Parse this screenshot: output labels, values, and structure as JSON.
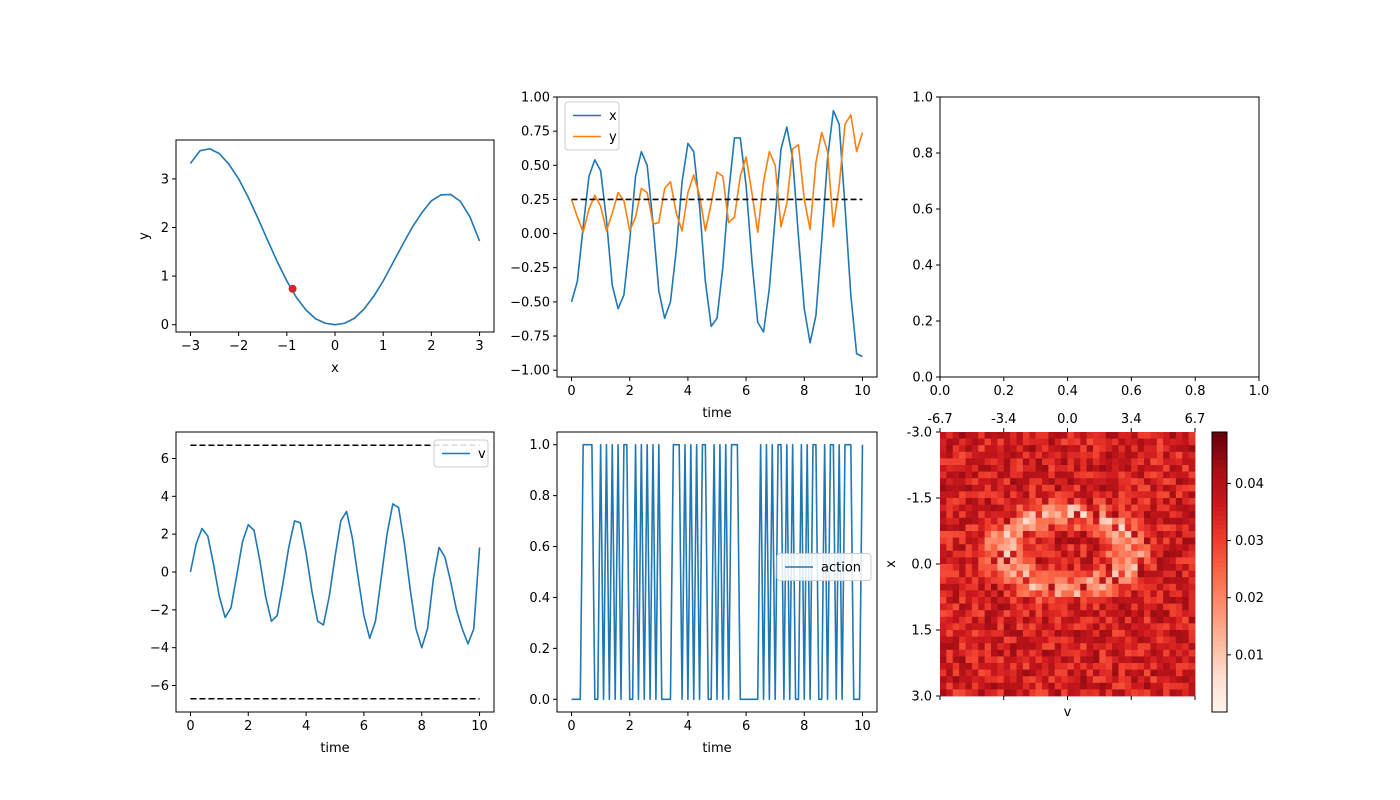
{
  "figure": {
    "background": "#ffffff"
  },
  "colors": {
    "blue": "#1f77b4",
    "orange": "#ff7f0e",
    "red_point": "#d62728",
    "dashed": "#000000"
  },
  "chart_data": [
    {
      "id": "p1",
      "type": "line",
      "xlabel": "x",
      "ylabel": "y",
      "xlim": [
        -3.3,
        3.3
      ],
      "ylim": [
        -0.15,
        3.8
      ],
      "xticks": [
        -3,
        -2,
        -1,
        0,
        1,
        2,
        3
      ],
      "xtick_labels": [
        "−3",
        "−2",
        "−1",
        "0",
        "1",
        "2",
        "3"
      ],
      "yticks": [
        0,
        1,
        2,
        3
      ],
      "ytick_labels": [
        "0",
        "1",
        "2",
        "3"
      ],
      "series": [
        {
          "color": "#1f77b4",
          "x": [
            -3.0,
            -2.8,
            -2.6,
            -2.4,
            -2.2,
            -2.0,
            -1.8,
            -1.6,
            -1.4,
            -1.2,
            -1.0,
            -0.8,
            -0.6,
            -0.4,
            -0.2,
            0.0,
            0.2,
            0.4,
            0.6,
            0.8,
            1.0,
            1.2,
            1.4,
            1.6,
            1.8,
            2.0,
            2.2,
            2.4,
            2.6,
            2.8,
            3.0
          ],
          "y": [
            3.32,
            3.58,
            3.62,
            3.52,
            3.3,
            3.0,
            2.62,
            2.19,
            1.74,
            1.3,
            0.9,
            0.56,
            0.3,
            0.12,
            0.03,
            0.0,
            0.03,
            0.13,
            0.32,
            0.58,
            0.9,
            1.27,
            1.64,
            2.0,
            2.3,
            2.55,
            2.67,
            2.68,
            2.54,
            2.22,
            1.72
          ]
        }
      ],
      "points": [
        {
          "x": -0.88,
          "y": 0.74,
          "color": "#d62728"
        }
      ]
    },
    {
      "id": "p2",
      "type": "line",
      "xlabel": "time",
      "ylabel": "",
      "xlim": [
        -0.5,
        10.5
      ],
      "ylim": [
        -1.05,
        1.0
      ],
      "xticks": [
        0,
        2,
        4,
        6,
        8,
        10
      ],
      "xtick_labels": [
        "0",
        "2",
        "4",
        "6",
        "8",
        "10"
      ],
      "yticks": [
        -1.0,
        -0.75,
        -0.5,
        -0.25,
        0.0,
        0.25,
        0.5,
        0.75,
        1.0
      ],
      "ytick_labels": [
        "−1.00",
        "−0.75",
        "−0.50",
        "−0.25",
        "0.00",
        "0.25",
        "0.50",
        "0.75",
        "1.00"
      ],
      "legend": {
        "position": "upper left",
        "entries": [
          "x",
          "y"
        ]
      },
      "series": [
        {
          "name": "x",
          "color": "#1f77b4",
          "x": [
            0.0,
            0.2,
            0.4,
            0.6,
            0.8,
            1.0,
            1.2,
            1.4,
            1.6,
            1.8,
            2.0,
            2.2,
            2.4,
            2.6,
            2.8,
            3.0,
            3.2,
            3.4,
            3.6,
            3.8,
            4.0,
            4.2,
            4.4,
            4.6,
            4.8,
            5.0,
            5.2,
            5.4,
            5.6,
            5.8,
            6.0,
            6.2,
            6.4,
            6.6,
            6.8,
            7.0,
            7.2,
            7.4,
            7.6,
            7.8,
            8.0,
            8.2,
            8.4,
            8.6,
            8.8,
            9.0,
            9.2,
            9.4,
            9.6,
            9.8,
            10.0
          ],
          "y": [
            -0.5,
            -0.35,
            0.05,
            0.42,
            0.54,
            0.46,
            0.1,
            -0.38,
            -0.55,
            -0.45,
            -0.05,
            0.42,
            0.6,
            0.5,
            0.08,
            -0.42,
            -0.62,
            -0.5,
            -0.12,
            0.38,
            0.66,
            0.6,
            0.2,
            -0.35,
            -0.68,
            -0.62,
            -0.25,
            0.3,
            0.7,
            0.7,
            0.35,
            -0.2,
            -0.65,
            -0.72,
            -0.4,
            0.12,
            0.62,
            0.78,
            0.55,
            -0.02,
            -0.55,
            -0.8,
            -0.6,
            -0.05,
            0.55,
            0.9,
            0.8,
            0.2,
            -0.45,
            -0.88,
            -0.9
          ]
        },
        {
          "name": "y",
          "color": "#ff7f0e",
          "x": [
            0.0,
            0.2,
            0.4,
            0.6,
            0.8,
            1.0,
            1.2,
            1.4,
            1.6,
            1.8,
            2.0,
            2.2,
            2.4,
            2.6,
            2.8,
            3.0,
            3.2,
            3.4,
            3.6,
            3.8,
            4.0,
            4.2,
            4.4,
            4.6,
            4.8,
            5.0,
            5.2,
            5.4,
            5.6,
            5.8,
            6.0,
            6.2,
            6.4,
            6.6,
            6.8,
            7.0,
            7.2,
            7.4,
            7.6,
            7.8,
            8.0,
            8.2,
            8.4,
            8.6,
            8.8,
            9.0,
            9.2,
            9.4,
            9.6,
            9.8,
            10.0
          ],
          "y": [
            0.25,
            0.12,
            0.01,
            0.18,
            0.28,
            0.2,
            0.02,
            0.15,
            0.3,
            0.24,
            0.02,
            0.12,
            0.33,
            0.3,
            0.07,
            0.08,
            0.33,
            0.38,
            0.15,
            0.02,
            0.3,
            0.43,
            0.28,
            0.02,
            0.22,
            0.45,
            0.42,
            0.08,
            0.12,
            0.42,
            0.56,
            0.3,
            0.01,
            0.38,
            0.6,
            0.5,
            0.05,
            0.22,
            0.62,
            0.65,
            0.25,
            0.03,
            0.52,
            0.74,
            0.6,
            0.05,
            0.35,
            0.8,
            0.87,
            0.6,
            0.74
          ]
        }
      ],
      "hlines": [
        {
          "y": 0.25,
          "x0": 0,
          "x1": 10,
          "style": "dashed",
          "color": "#000000"
        }
      ]
    },
    {
      "id": "p3",
      "type": "line",
      "xlabel": "",
      "ylabel": "",
      "xlim": [
        0.0,
        1.0
      ],
      "ylim": [
        0.0,
        1.0
      ],
      "xticks": [
        0.0,
        0.2,
        0.4,
        0.6,
        0.8,
        1.0
      ],
      "xtick_labels": [
        "0.0",
        "0.2",
        "0.4",
        "0.6",
        "0.8",
        "1.0"
      ],
      "yticks": [
        0.0,
        0.2,
        0.4,
        0.6,
        0.8,
        1.0
      ],
      "ytick_labels": [
        "0.0",
        "0.2",
        "0.4",
        "0.6",
        "0.8",
        "1.0"
      ],
      "series": []
    },
    {
      "id": "p4",
      "type": "line",
      "xlabel": "time",
      "ylabel": "",
      "xlim": [
        -0.5,
        10.5
      ],
      "ylim": [
        -7.4,
        7.4
      ],
      "xticks": [
        0,
        2,
        4,
        6,
        8,
        10
      ],
      "xtick_labels": [
        "0",
        "2",
        "4",
        "6",
        "8",
        "10"
      ],
      "yticks": [
        -6,
        -4,
        -2,
        0,
        2,
        4,
        6
      ],
      "ytick_labels": [
        "−6",
        "−4",
        "−2",
        "0",
        "2",
        "4",
        "6"
      ],
      "legend": {
        "position": "upper right",
        "entries": [
          "v"
        ]
      },
      "series": [
        {
          "name": "v",
          "color": "#1f77b4",
          "x": [
            0.0,
            0.2,
            0.4,
            0.6,
            0.8,
            1.0,
            1.2,
            1.4,
            1.6,
            1.8,
            2.0,
            2.2,
            2.4,
            2.6,
            2.8,
            3.0,
            3.2,
            3.4,
            3.6,
            3.8,
            4.0,
            4.2,
            4.4,
            4.6,
            4.8,
            5.0,
            5.2,
            5.4,
            5.6,
            5.8,
            6.0,
            6.2,
            6.4,
            6.6,
            6.8,
            7.0,
            7.2,
            7.4,
            7.6,
            7.8,
            8.0,
            8.2,
            8.4,
            8.6,
            8.8,
            9.0,
            9.2,
            9.4,
            9.6,
            9.8,
            10.0
          ],
          "y": [
            0.0,
            1.5,
            2.3,
            1.9,
            0.4,
            -1.3,
            -2.4,
            -1.9,
            -0.2,
            1.6,
            2.5,
            2.2,
            0.6,
            -1.3,
            -2.6,
            -2.3,
            -0.6,
            1.3,
            2.7,
            2.6,
            1.0,
            -1.0,
            -2.6,
            -2.8,
            -1.3,
            0.8,
            2.7,
            3.2,
            1.8,
            -0.3,
            -2.3,
            -3.5,
            -2.6,
            -0.3,
            2.0,
            3.6,
            3.4,
            1.5,
            -0.9,
            -3.0,
            -4.0,
            -3.0,
            -0.4,
            1.3,
            0.8,
            -0.5,
            -2.0,
            -3.0,
            -3.8,
            -3.0,
            1.3
          ]
        }
      ],
      "hlines": [
        {
          "y": 6.7,
          "x0": 0,
          "x1": 10,
          "style": "dashed",
          "color": "#000000"
        },
        {
          "y": -6.7,
          "x0": 0,
          "x1": 10,
          "style": "dashed",
          "color": "#000000"
        }
      ]
    },
    {
      "id": "p5",
      "type": "line",
      "xlabel": "time",
      "ylabel": "",
      "xlim": [
        -0.5,
        10.5
      ],
      "ylim": [
        -0.05,
        1.05
      ],
      "xticks": [
        0,
        2,
        4,
        6,
        8,
        10
      ],
      "xtick_labels": [
        "0",
        "2",
        "4",
        "6",
        "8",
        "10"
      ],
      "yticks": [
        0.0,
        0.2,
        0.4,
        0.6,
        0.8,
        1.0
      ],
      "ytick_labels": [
        "0.0",
        "0.2",
        "0.4",
        "0.6",
        "0.8",
        "1.0"
      ],
      "legend": {
        "position": "center right",
        "entries": [
          "action"
        ]
      },
      "series": [
        {
          "name": "action",
          "color": "#1f77b4",
          "x": [
            0.0,
            0.1,
            0.2,
            0.3,
            0.4,
            0.5,
            0.6,
            0.7,
            0.8,
            0.9,
            1.0,
            1.1,
            1.2,
            1.3,
            1.4,
            1.5,
            1.6,
            1.7,
            1.8,
            1.9,
            2.0,
            2.1,
            2.2,
            2.3,
            2.4,
            2.5,
            2.6,
            2.7,
            2.8,
            2.9,
            3.0,
            3.1,
            3.2,
            3.3,
            3.4,
            3.5,
            3.6,
            3.7,
            3.8,
            3.9,
            4.0,
            4.1,
            4.2,
            4.3,
            4.4,
            4.5,
            4.6,
            4.7,
            4.8,
            4.9,
            5.0,
            5.1,
            5.2,
            5.3,
            5.4,
            5.5,
            5.6,
            5.7,
            5.8,
            5.9,
            6.0,
            6.1,
            6.2,
            6.3,
            6.4,
            6.5,
            6.6,
            6.7,
            6.8,
            6.9,
            7.0,
            7.1,
            7.2,
            7.3,
            7.4,
            7.5,
            7.6,
            7.7,
            7.8,
            7.9,
            8.0,
            8.1,
            8.2,
            8.3,
            8.4,
            8.5,
            8.6,
            8.7,
            8.8,
            8.9,
            9.0,
            9.1,
            9.2,
            9.3,
            9.4,
            9.5,
            9.6,
            9.7,
            9.8,
            9.9,
            10.0
          ],
          "y": [
            0,
            0,
            0,
            0,
            1,
            1,
            1,
            1,
            0,
            0,
            1,
            0,
            1,
            0,
            1,
            0,
            1,
            0,
            1,
            1,
            0,
            0,
            1,
            0,
            1,
            0,
            1,
            0,
            1,
            0,
            1,
            0,
            0,
            0,
            0,
            1,
            1,
            1,
            0,
            1,
            0,
            1,
            0,
            1,
            0,
            1,
            1,
            0,
            0,
            1,
            0,
            1,
            0,
            1,
            0,
            1,
            1,
            1,
            0,
            0,
            0,
            0,
            0,
            0,
            0,
            1,
            0,
            1,
            0,
            1,
            0,
            1,
            1,
            0,
            1,
            0,
            1,
            0,
            0,
            1,
            0,
            1,
            0,
            1,
            1,
            0,
            0,
            1,
            0,
            1,
            1,
            0,
            1,
            0,
            1,
            1,
            1,
            0,
            0,
            0,
            1
          ]
        }
      ]
    },
    {
      "id": "p6",
      "type": "heatmap",
      "xlabel": "v",
      "ylabel": "x",
      "x_range": [
        -6.7,
        6.7
      ],
      "y_range": [
        -3.0,
        3.0
      ],
      "xtick_labels": [
        "-6.7",
        "-3.4",
        "0.0",
        "3.4",
        "6.7"
      ],
      "ytick_labels": [
        "-3.0",
        "-1.5",
        "0.0",
        "1.5",
        "3.0"
      ],
      "grid_size": [
        40,
        40
      ],
      "colormap": "Reds",
      "colorbar": {
        "vmin": 0.0,
        "vmax": 0.049,
        "ticks": [
          0.01,
          0.02,
          0.03,
          0.04
        ],
        "tick_labels": [
          "0.01",
          "0.02",
          "0.03",
          "0.04"
        ]
      },
      "value_pattern": {
        "background_mean": 0.036,
        "background_noise": 0.008,
        "ring": {
          "center_v": 0.0,
          "center_x": -0.3,
          "radius_v": 3.3,
          "radius_x": 0.85,
          "width": 0.35,
          "min_value": 0.005
        }
      }
    }
  ]
}
